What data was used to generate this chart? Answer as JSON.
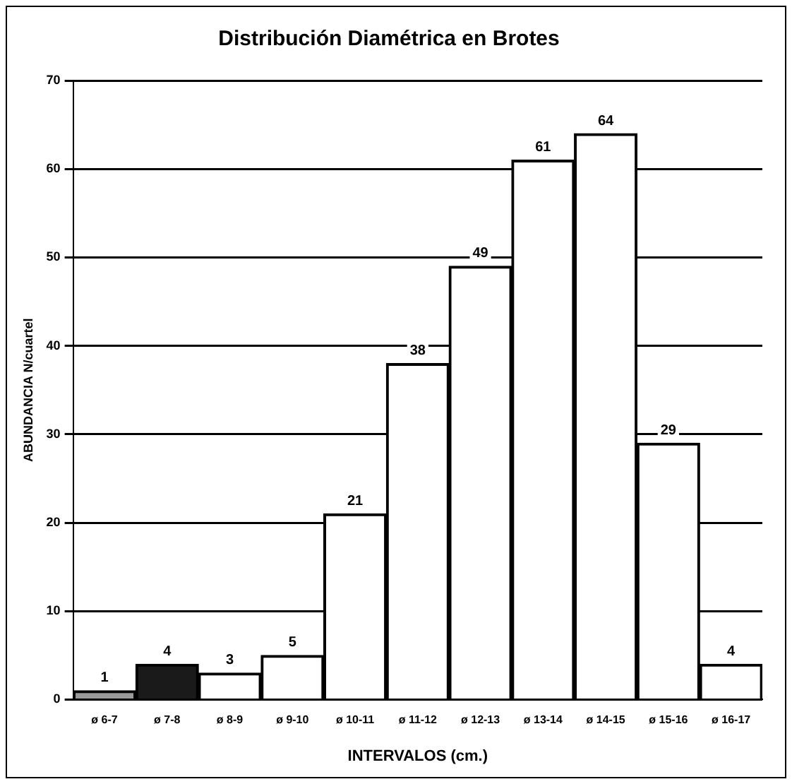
{
  "chart_data": {
    "type": "bar",
    "title": "Distribución Diamétrica en Brotes",
    "xlabel": "INTERVALOS (cm.)",
    "ylabel": "ABUNDANCIA N/cuartel",
    "categories": [
      "ø 6-7",
      "ø 7-8",
      "ø 8-9",
      "ø 9-10",
      "ø 10-11",
      "ø 11-12",
      "ø 12-13",
      "ø 13-14",
      "ø 14-15",
      "ø 15-16",
      "ø 16-17"
    ],
    "values": [
      1,
      4,
      3,
      5,
      21,
      38,
      49,
      61,
      64,
      29,
      4
    ],
    "colors": [
      "#9a9a9a",
      "#1a1a1a",
      "#ffffff",
      "#ffffff",
      "#ffffff",
      "#ffffff",
      "#ffffff",
      "#ffffff",
      "#ffffff",
      "#ffffff",
      "#ffffff"
    ],
    "ylim": [
      0,
      70
    ],
    "yticks": [
      0,
      10,
      20,
      30,
      40,
      50,
      60,
      70
    ],
    "grid": "y",
    "data_labels": true,
    "legend": false
  }
}
